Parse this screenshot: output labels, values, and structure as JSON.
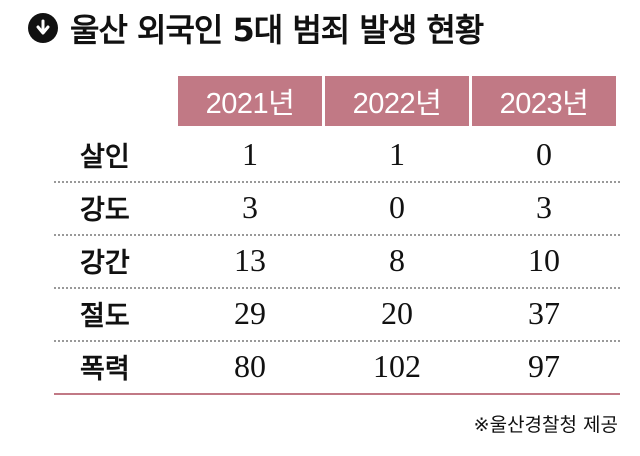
{
  "title": "울산 외국인 5대 범죄 발생 현황",
  "columns": [
    "2021년",
    "2022년",
    "2023년"
  ],
  "rows": [
    {
      "label": "살인",
      "values": [
        "1",
        "1",
        "0"
      ]
    },
    {
      "label": "강도",
      "values": [
        "3",
        "0",
        "3"
      ]
    },
    {
      "label": "강간",
      "values": [
        "13",
        "8",
        "10"
      ]
    },
    {
      "label": "절도",
      "values": [
        "29",
        "20",
        "37"
      ]
    },
    {
      "label": "폭력",
      "values": [
        "80",
        "102",
        "97"
      ]
    }
  ],
  "source": "※울산경찰청 제공",
  "colors": {
    "header_bg": "#c17985",
    "text": "#111111"
  },
  "icons": {
    "title": "arrow-down-circle-icon"
  }
}
